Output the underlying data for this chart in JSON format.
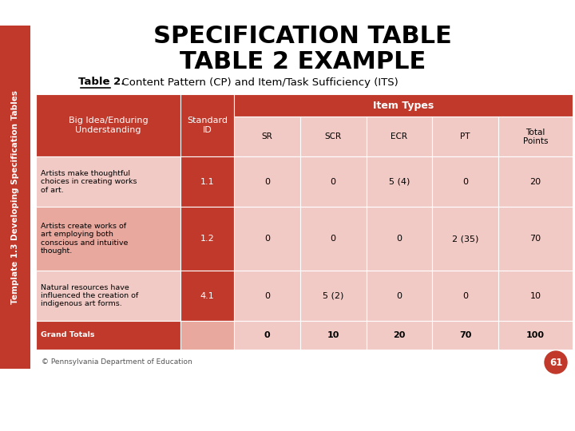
{
  "title_line1": "SPECIFICATION TABLE",
  "title_line2": "TABLE 2 EXAMPLE",
  "subtitle_bold": "Table 2.",
  "subtitle_rest": "  Content Pattern (CP) and Item/Task Sufficiency (ITS)",
  "sidebar_text": "Template 1.3 Developing Specification Tables",
  "footer_text": "© Pennsylvania Department of Education",
  "page_number": "61",
  "bg_color": "#ffffff",
  "header_color": "#c0392b",
  "row_light": "#f2cac5",
  "row_medium": "#e8a89e",
  "row_dark_bg": "#c0392b",
  "sidebar_color": "#c0392b",
  "col_headers": [
    "SR",
    "SCR",
    "ECR",
    "PT",
    "Total\nPoints"
  ],
  "item_types_label": "Item Types",
  "header_col1": "Big Idea/Enduring\nUnderstanding",
  "header_col2": "Standard\nID",
  "rows": [
    {
      "idea": "Artists make thoughtful\nchoices in creating works\nof art.",
      "std_id": "1.1",
      "values": [
        "0",
        "0",
        "5 (4)",
        "0",
        "20"
      ],
      "bg": "light"
    },
    {
      "idea": "Artists create works of\nart employing both\nconscious and intuitive\nthought.",
      "std_id": "1.2",
      "values": [
        "0",
        "0",
        "0",
        "2 (35)",
        "70"
      ],
      "bg": "medium"
    },
    {
      "idea": "Natural resources have\ninfluenced the creation of\nindigenous art forms.",
      "std_id": "4.1",
      "values": [
        "0",
        "5 (2)",
        "0",
        "0",
        "10"
      ],
      "bg": "light"
    },
    {
      "idea": "Grand Totals",
      "std_id": "",
      "values": [
        "0",
        "10",
        "20",
        "70",
        "100"
      ],
      "bg": "dark"
    }
  ]
}
